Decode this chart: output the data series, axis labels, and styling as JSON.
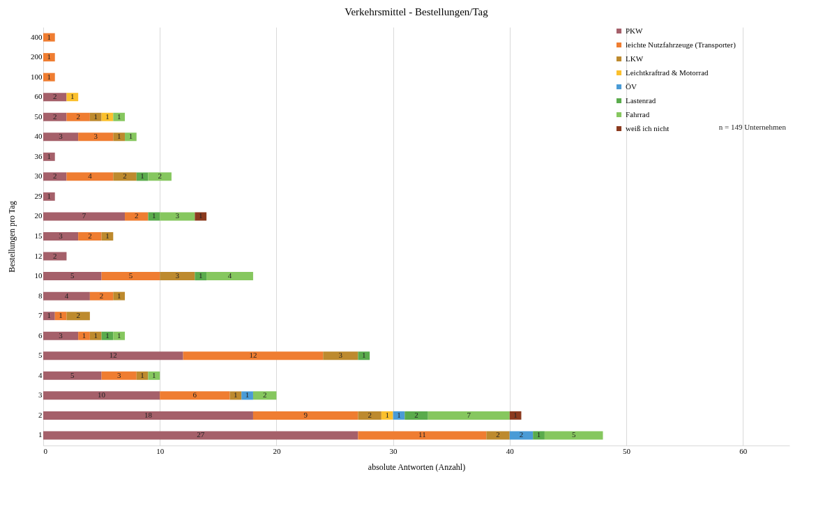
{
  "chart_data": {
    "type": "bar",
    "orientation": "horizontal",
    "stacked": true,
    "title": "Verkehrsmittel - Bestellungen/Tag",
    "xlabel": "absolute Antworten (Anzahl)",
    "ylabel": "Bestellungen pro Tag",
    "categories": [
      "400",
      "200",
      "100",
      "60",
      "50",
      "40",
      "36",
      "30",
      "29",
      "20",
      "15",
      "12",
      "10",
      "8",
      "7",
      "6",
      "5",
      "4",
      "3",
      "2",
      "1"
    ],
    "series": [
      {
        "name": "PKW",
        "color": "#a5606a",
        "values": [
          null,
          null,
          null,
          2,
          2,
          3,
          1,
          2,
          1,
          7,
          3,
          2,
          5,
          4,
          1,
          3,
          12,
          5,
          10,
          18,
          27
        ]
      },
      {
        "name": "leichte Nutzfahrzeuge (Transporter)",
        "color": "#ef7d31",
        "values": [
          1,
          1,
          1,
          null,
          2,
          3,
          null,
          4,
          null,
          2,
          2,
          null,
          5,
          2,
          1,
          1,
          12,
          3,
          6,
          9,
          11
        ]
      },
      {
        "name": "LKW",
        "color": "#bd8a2e",
        "values": [
          null,
          null,
          null,
          null,
          1,
          1,
          null,
          2,
          null,
          null,
          1,
          null,
          3,
          1,
          2,
          1,
          3,
          1,
          1,
          2,
          2
        ]
      },
      {
        "name": "Leichtkraftrad & Motorrad",
        "color": "#fbc02d",
        "values": [
          null,
          null,
          null,
          1,
          1,
          null,
          null,
          null,
          null,
          null,
          null,
          null,
          null,
          null,
          null,
          null,
          null,
          null,
          null,
          1,
          null
        ]
      },
      {
        "name": "ÖV",
        "color": "#4a9bd6",
        "values": [
          null,
          null,
          null,
          null,
          null,
          null,
          null,
          null,
          null,
          null,
          null,
          null,
          null,
          null,
          null,
          null,
          null,
          null,
          1,
          1,
          2
        ]
      },
      {
        "name": "Lastenrad",
        "color": "#5aab4c",
        "values": [
          null,
          null,
          null,
          null,
          null,
          null,
          null,
          1,
          null,
          1,
          null,
          null,
          1,
          null,
          null,
          1,
          1,
          null,
          null,
          2,
          1
        ]
      },
      {
        "name": "Fahrrad",
        "color": "#86c75f",
        "values": [
          null,
          null,
          null,
          null,
          1,
          1,
          null,
          2,
          null,
          3,
          null,
          null,
          4,
          null,
          null,
          1,
          null,
          1,
          2,
          7,
          5
        ]
      },
      {
        "name": "weiß ich nicht",
        "color": "#8b3a1e",
        "values": [
          null,
          null,
          null,
          null,
          null,
          null,
          null,
          null,
          null,
          1,
          null,
          null,
          null,
          null,
          null,
          null,
          null,
          null,
          null,
          1,
          null
        ]
      }
    ],
    "xlim": [
      0,
      64
    ],
    "xticks": [
      0,
      10,
      20,
      30,
      40,
      50,
      60
    ],
    "grid": "x",
    "legend": "top right",
    "data_labels": true,
    "annotations": [
      "n = 149 Unternehmen"
    ]
  }
}
